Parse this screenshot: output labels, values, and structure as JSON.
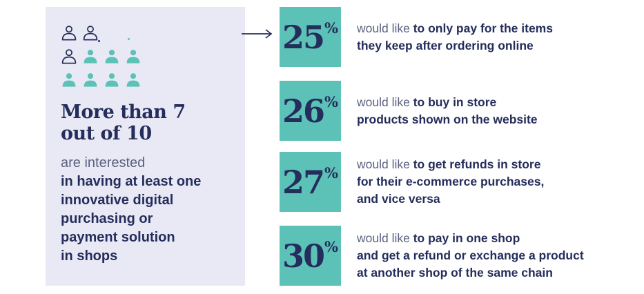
{
  "colors": {
    "teal": "#5cc2b7",
    "navy": "#242d5b",
    "lavender": "#e9e9f5",
    "slate": "#5a6080",
    "background": "#ffffff"
  },
  "left_panel": {
    "icon_rows": [
      [
        "outline",
        "outline"
      ],
      [
        "outline",
        "filled",
        "filled",
        "filled"
      ],
      [
        "filled",
        "filled",
        "filled",
        "filled"
      ]
    ],
    "headline_lines": [
      "More than 7",
      "out of 10"
    ],
    "intro": "are interested",
    "statement_lines": [
      "in having at least one",
      "innovative digital",
      "purchasing or",
      "payment solution",
      "in shops"
    ]
  },
  "stats": [
    {
      "value": "25",
      "unit": "%",
      "lead": "would like ",
      "bold_intro": "to only pay for the items",
      "bold_lines": [
        "they keep after ordering online"
      ]
    },
    {
      "value": "26",
      "unit": "%",
      "lead": "would like ",
      "bold_intro": "to buy in store",
      "bold_lines": [
        "products shown on the website"
      ]
    },
    {
      "value": "27",
      "unit": "%",
      "lead": "would like ",
      "bold_intro": "to get refunds in store",
      "bold_lines": [
        "for their e-commerce purchases,",
        "and vice versa"
      ]
    },
    {
      "value": "30",
      "unit": "%",
      "lead": "would like ",
      "bold_intro": "to pay in one shop",
      "bold_lines": [
        "and get a refund or exchange a product",
        "at another shop of the same chain"
      ]
    }
  ],
  "chart_data": {
    "type": "bar",
    "title": "More than 7 out of 10 are interested in having at least one innovative digital purchasing or payment solution in shops",
    "categories": [
      "would like to only pay for the items they keep after ordering online",
      "would like to buy in store products shown on the website",
      "would like to get refunds in store for their e-commerce purchases, and vice versa",
      "would like to pay in one shop and get a refund or exchange a product at another shop of the same chain"
    ],
    "values": [
      25,
      26,
      27,
      30
    ],
    "unit": "%",
    "pictogram": {
      "total_people": 10,
      "highlighted_people": 7
    },
    "legend_position": "none",
    "grid": false
  }
}
